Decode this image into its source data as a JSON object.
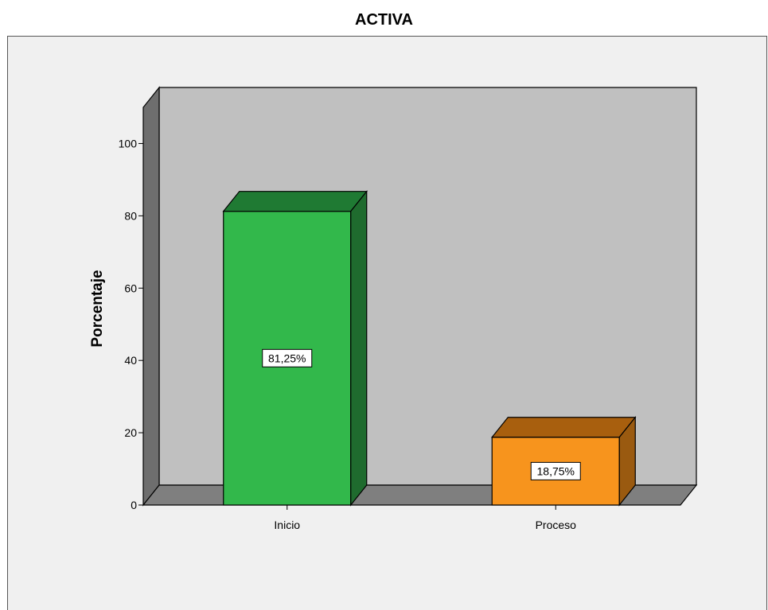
{
  "chart_data": {
    "type": "bar",
    "title": "ACTIVA",
    "xlabel": "",
    "ylabel": "Porcentaje",
    "ylim": [
      0,
      110
    ],
    "yticks": [
      0,
      20,
      40,
      60,
      80,
      100
    ],
    "categories": [
      "Inicio",
      "Proceso"
    ],
    "values": [
      81.25,
      18.75
    ],
    "data_labels": [
      "81,25%",
      "18,75%"
    ],
    "colors": {
      "bars": [
        "#32b84b",
        "#f7941d"
      ],
      "bars_top": [
        "#1f7a33",
        "#a85f0e"
      ],
      "bars_side": [
        "#1f6b2e",
        "#9a5a10"
      ],
      "wall": "#c0c0c0",
      "floor": "#7f7f7f",
      "left_wall": "#6e6e6e"
    },
    "grid": false,
    "legend": "none"
  }
}
